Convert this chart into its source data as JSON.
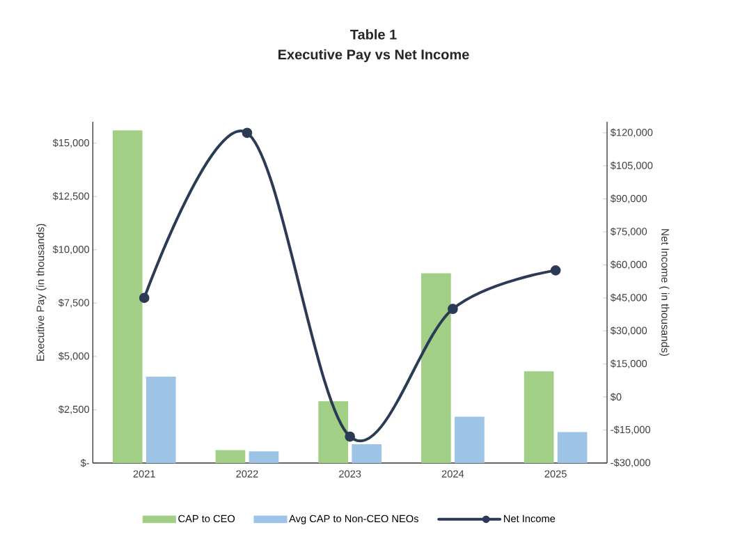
{
  "chart_data": {
    "type": "bar",
    "title": "Table 1",
    "subtitle": "Executive Pay vs Net Income",
    "ylabel": "Executive Pay (in thousands)",
    "y2label": "Net Income ( in thousands)",
    "categories": [
      "2021",
      "2022",
      "2023",
      "2024",
      "2025"
    ],
    "series": [
      {
        "name": "CAP to CEO",
        "color": "#a1cf86",
        "values": [
          15600,
          600,
          2900,
          8900,
          4300
        ]
      },
      {
        "name": "Avg CAP to Non-CEO NEOs",
        "color": "#9dc3e6",
        "values": [
          4050,
          550,
          880,
          2170,
          1450
        ]
      },
      {
        "name": "Net Income",
        "type": "line",
        "axis": "y2",
        "color": "#2b3a55",
        "values": [
          45000,
          120000,
          -18000,
          40000,
          57500
        ]
      }
    ],
    "ylim": [
      0,
      16000
    ],
    "yticks": [
      {
        "value": 0,
        "label": "$-"
      },
      {
        "value": 2500,
        "label": "$2,500"
      },
      {
        "value": 5000,
        "label": "$5,000"
      },
      {
        "value": 7500,
        "label": "$7,500"
      },
      {
        "value": 10000,
        "label": "$10,000"
      },
      {
        "value": 12500,
        "label": "$12,500"
      },
      {
        "value": 15000,
        "label": "$15,000"
      }
    ],
    "y2lim": [
      -30000,
      125000
    ],
    "y2ticks": [
      {
        "value": -30000,
        "label": "-$30,000"
      },
      {
        "value": -15000,
        "label": "-$15,000"
      },
      {
        "value": 0,
        "label": "$0"
      },
      {
        "value": 15000,
        "label": "$15,000"
      },
      {
        "value": 30000,
        "label": "$30,000"
      },
      {
        "value": 45000,
        "label": "$45,000"
      },
      {
        "value": 60000,
        "label": "$60,000"
      },
      {
        "value": 75000,
        "label": "$75,000"
      },
      {
        "value": 90000,
        "label": "$90,000"
      },
      {
        "value": 105000,
        "label": "$105,000"
      },
      {
        "value": 120000,
        "label": "$120,000"
      }
    ],
    "legend": "bottom",
    "marker": "circle",
    "grid": false
  }
}
